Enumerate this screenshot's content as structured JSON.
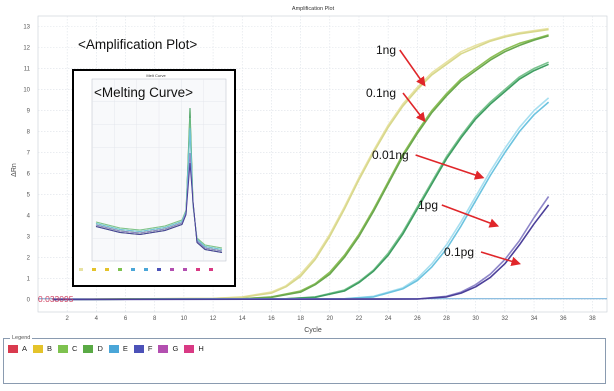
{
  "chart_data": {
    "type": "line",
    "title": "Amplification Plot",
    "xlabel": "Cycle",
    "ylabel": "ΔRn",
    "xlim": [
      0,
      39
    ],
    "ylim": [
      -0.6,
      13.5
    ],
    "xticks": [
      2,
      4,
      6,
      8,
      10,
      12,
      14,
      16,
      18,
      20,
      22,
      24,
      26,
      28,
      30,
      32,
      34,
      36,
      38
    ],
    "yticks": [
      0,
      1,
      2,
      3,
      4,
      5,
      6,
      7,
      8,
      9,
      10,
      11,
      12,
      13
    ],
    "grid": true,
    "threshold": {
      "value": 0.033095,
      "label": "0.033095",
      "color": "#d04060"
    },
    "series": [
      {
        "color": "#e7e2a2",
        "x": [
          1,
          12,
          14,
          16,
          17,
          18,
          19,
          20,
          21,
          22,
          23,
          24,
          25,
          26,
          27,
          28,
          29,
          30,
          31,
          32,
          33,
          34,
          35
        ],
        "y": [
          0,
          0.05,
          0.12,
          0.35,
          0.65,
          1.2,
          2.0,
          3.1,
          4.4,
          5.8,
          7.1,
          8.3,
          9.3,
          10.1,
          10.8,
          11.3,
          11.8,
          12.1,
          12.35,
          12.55,
          12.7,
          12.8,
          12.9
        ]
      },
      {
        "color": "#d8d88c",
        "x": [
          1,
          12,
          14,
          16,
          17,
          18,
          19,
          20,
          21,
          22,
          23,
          24,
          25,
          26,
          27,
          28,
          29,
          30,
          31,
          32,
          33,
          34,
          35
        ],
        "y": [
          0,
          0.05,
          0.1,
          0.3,
          0.6,
          1.1,
          1.9,
          3.0,
          4.3,
          5.7,
          7.0,
          8.2,
          9.2,
          10.0,
          10.7,
          11.2,
          11.7,
          12.0,
          12.3,
          12.5,
          12.65,
          12.75,
          12.85
        ]
      },
      {
        "color": "#8dbf56",
        "x": [
          1,
          14,
          16,
          18,
          19,
          20,
          21,
          22,
          23,
          24,
          25,
          26,
          27,
          28,
          29,
          30,
          31,
          32,
          33,
          34,
          35
        ],
        "y": [
          0,
          0.03,
          0.12,
          0.4,
          0.75,
          1.3,
          2.1,
          3.1,
          4.3,
          5.6,
          6.9,
          8.0,
          9.0,
          9.8,
          10.5,
          11.0,
          11.5,
          11.9,
          12.2,
          12.4,
          12.6
        ]
      },
      {
        "color": "#6aa84f",
        "x": [
          1,
          14,
          16,
          18,
          19,
          20,
          21,
          22,
          23,
          24,
          25,
          26,
          27,
          28,
          29,
          30,
          31,
          32,
          33,
          34,
          35
        ],
        "y": [
          0,
          0.03,
          0.1,
          0.35,
          0.7,
          1.2,
          2.0,
          3.0,
          4.2,
          5.5,
          6.8,
          7.9,
          8.9,
          9.7,
          10.4,
          10.9,
          11.4,
          11.8,
          12.1,
          12.35,
          12.55
        ]
      },
      {
        "color": "#79c38e",
        "x": [
          1,
          17,
          19,
          21,
          22,
          23,
          24,
          25,
          26,
          27,
          28,
          29,
          30,
          31,
          32,
          33,
          34,
          35
        ],
        "y": [
          0,
          0.03,
          0.12,
          0.45,
          0.85,
          1.4,
          2.2,
          3.2,
          4.4,
          5.6,
          6.8,
          7.8,
          8.7,
          9.4,
          10.0,
          10.6,
          11.0,
          11.3
        ]
      },
      {
        "color": "#3f9e62",
        "x": [
          1,
          17,
          19,
          21,
          22,
          23,
          24,
          25,
          26,
          27,
          28,
          29,
          30,
          31,
          32,
          33,
          34,
          35
        ],
        "y": [
          0,
          0.03,
          0.1,
          0.4,
          0.8,
          1.35,
          2.1,
          3.1,
          4.3,
          5.5,
          6.7,
          7.7,
          8.6,
          9.3,
          9.9,
          10.5,
          10.9,
          11.2
        ]
      },
      {
        "color": "#a8dff0",
        "x": [
          1,
          21,
          23,
          25,
          26,
          27,
          28,
          29,
          30,
          31,
          32,
          33,
          34,
          35
        ],
        "y": [
          0,
          0.03,
          0.15,
          0.55,
          1.0,
          1.7,
          2.6,
          3.7,
          4.9,
          6.1,
          7.2,
          8.2,
          9.0,
          9.6
        ]
      },
      {
        "color": "#6cc3df",
        "x": [
          1,
          21,
          23,
          25,
          26,
          27,
          28,
          29,
          30,
          31,
          32,
          33,
          34,
          35
        ],
        "y": [
          0,
          0.03,
          0.12,
          0.5,
          0.9,
          1.55,
          2.4,
          3.5,
          4.7,
          5.9,
          7.0,
          8.0,
          8.8,
          9.4
        ]
      },
      {
        "color": "#8e86c9",
        "x": [
          1,
          26,
          28,
          29,
          30,
          31,
          32,
          33,
          34,
          35
        ],
        "y": [
          0,
          0.02,
          0.15,
          0.35,
          0.7,
          1.2,
          1.9,
          2.8,
          3.9,
          4.9
        ]
      },
      {
        "color": "#4b3f99",
        "x": [
          1,
          26,
          28,
          29,
          30,
          31,
          32,
          33,
          34,
          35
        ],
        "y": [
          0,
          0.02,
          0.12,
          0.3,
          0.6,
          1.05,
          1.7,
          2.6,
          3.6,
          4.5
        ]
      }
    ]
  },
  "annotations": {
    "amp_title": "<Amplification Plot>",
    "melt_title": "<Melting Curve>",
    "labels": [
      {
        "text": "1ng",
        "arrow_to_x": 26.5,
        "arrow_to_y": 10.2
      },
      {
        "text": "0.1ng",
        "arrow_to_x": 26.5,
        "arrow_to_y": 8.5
      },
      {
        "text": "0.01ng",
        "arrow_to_x": 30.5,
        "arrow_to_y": 5.8
      },
      {
        "text": "1pg",
        "arrow_to_x": 31.5,
        "arrow_to_y": 3.5
      },
      {
        "text": "0.1pg",
        "arrow_to_x": 33.0,
        "arrow_to_y": 1.7
      }
    ]
  },
  "inset": {
    "title": "Melt Curve"
  },
  "legend": {
    "label": "Legend",
    "items": [
      {
        "label": "A",
        "color": "#d93a4e"
      },
      {
        "label": "B",
        "color": "#e4c32b"
      },
      {
        "label": "C",
        "color": "#7ec24f"
      },
      {
        "label": "D",
        "color": "#5aaa45"
      },
      {
        "label": "E",
        "color": "#4aa6d8"
      },
      {
        "label": "F",
        "color": "#4c52b8"
      },
      {
        "label": "G",
        "color": "#b34fb0"
      },
      {
        "label": "H",
        "color": "#d93a84"
      }
    ]
  }
}
